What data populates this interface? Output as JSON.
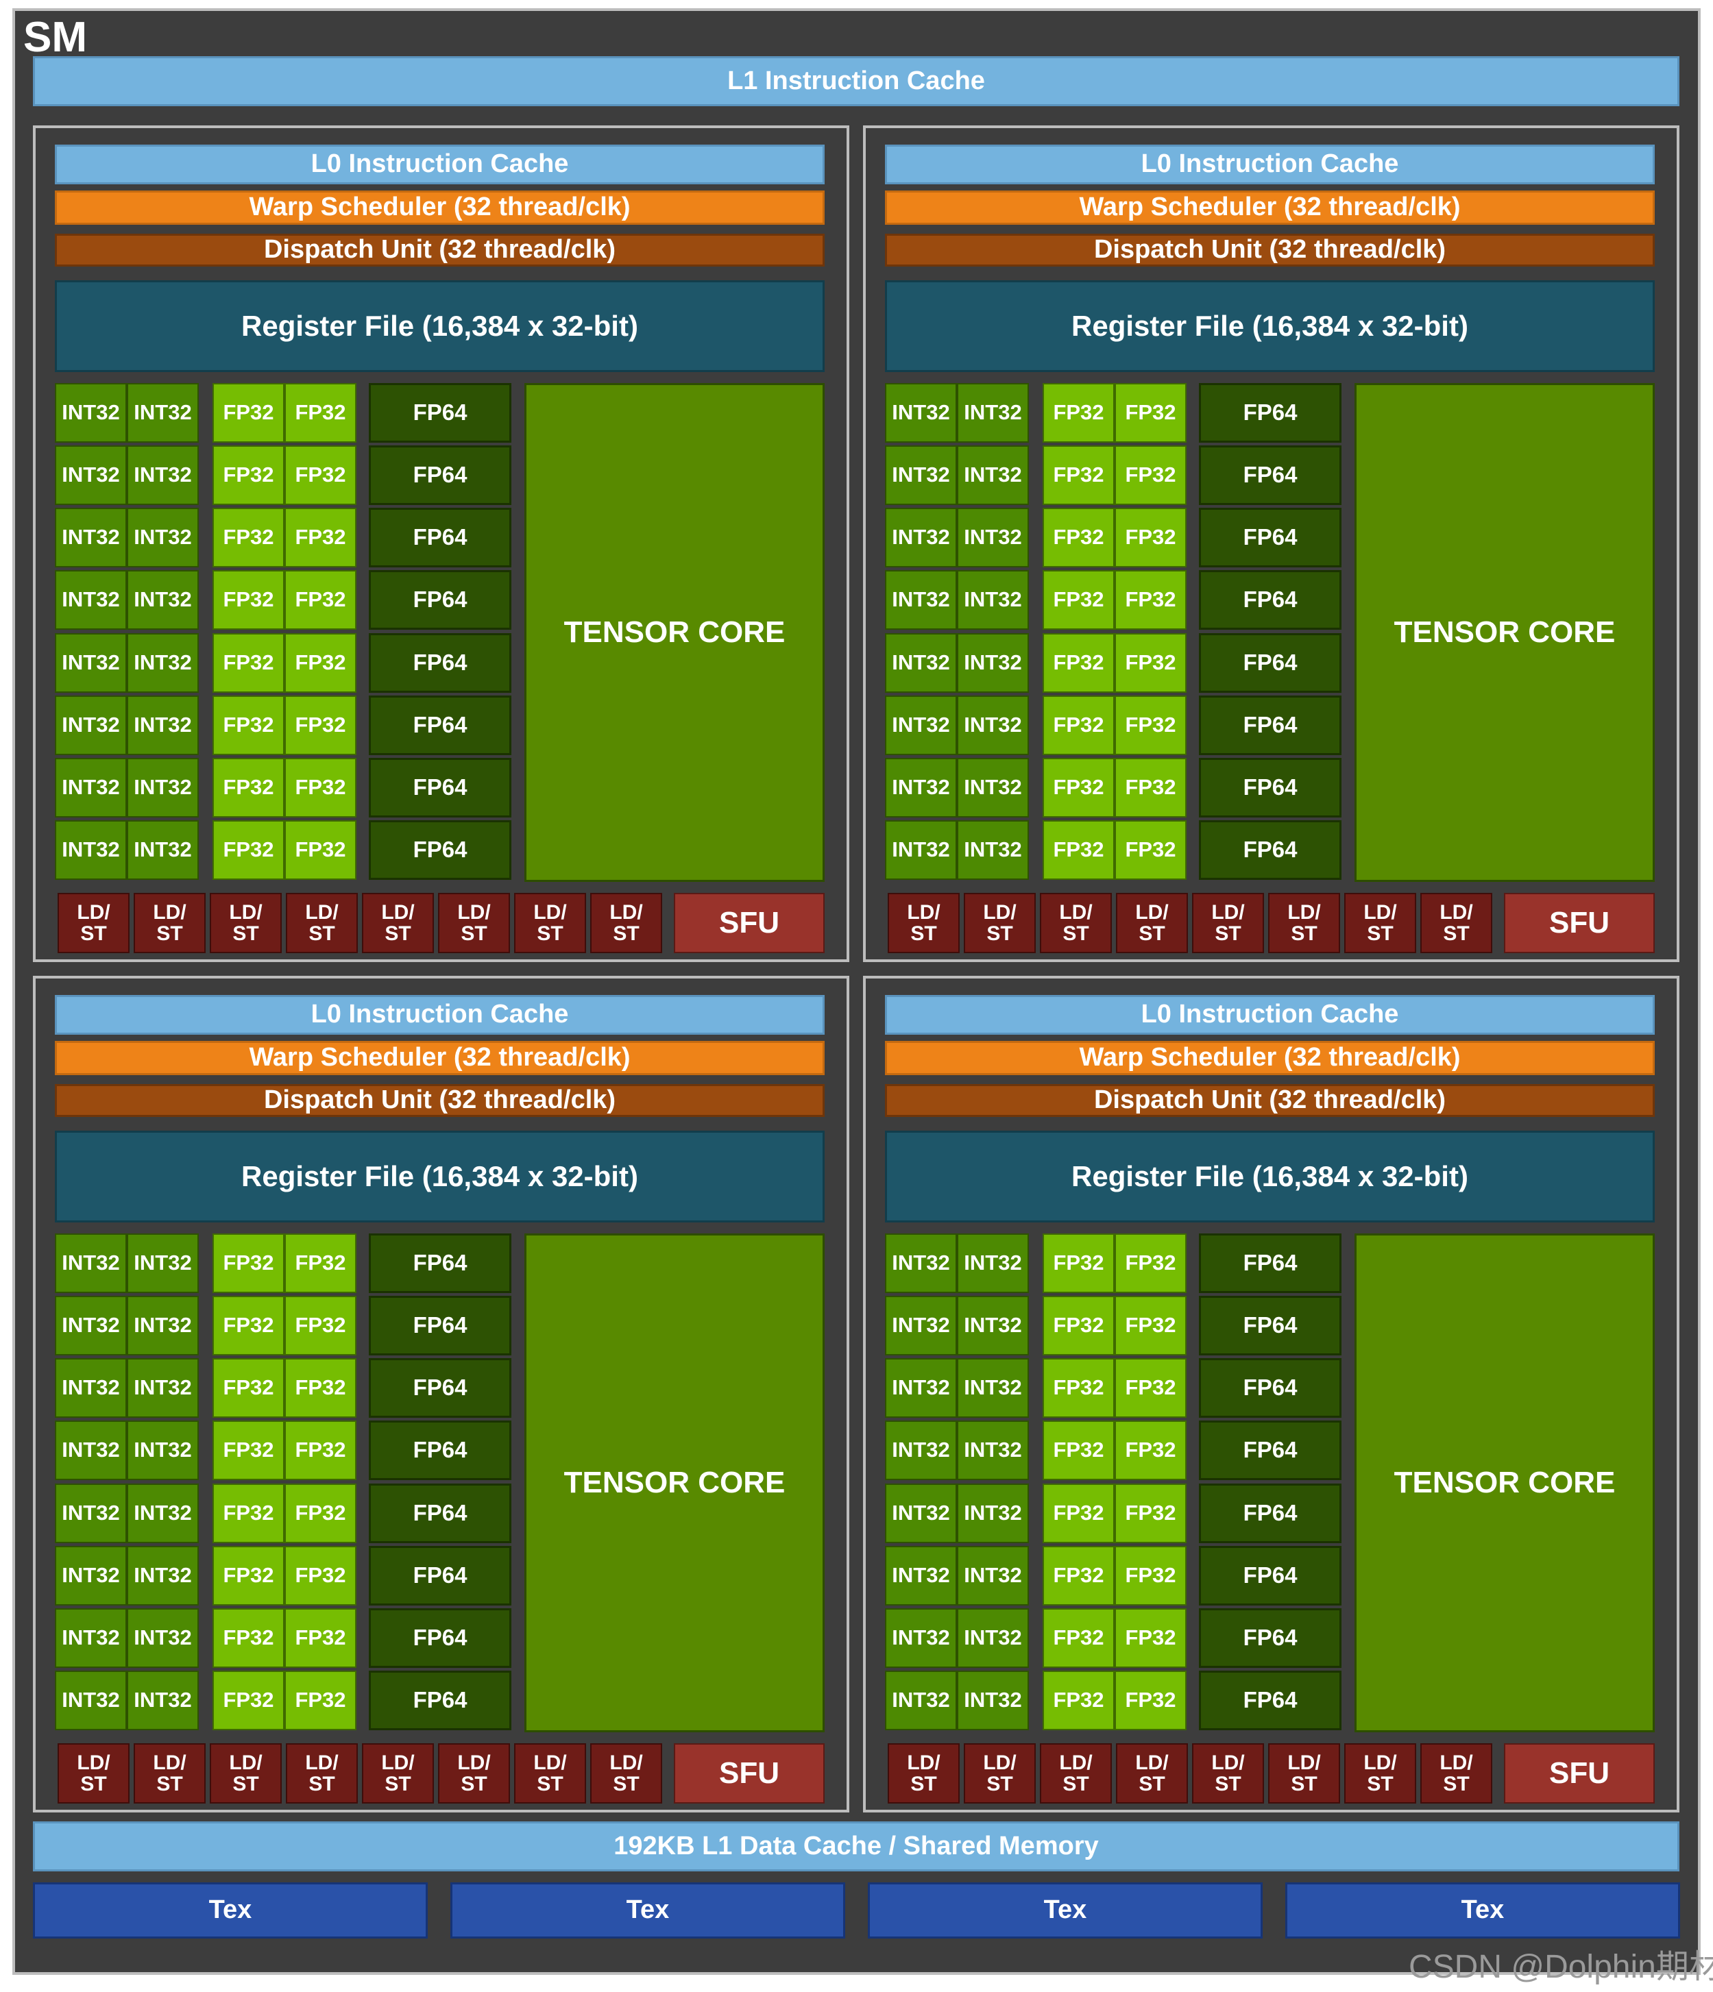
{
  "sm_label": "SM",
  "l1_instruction_cache": "L1 Instruction Cache",
  "partition": {
    "l0_cache": "L0 Instruction Cache",
    "warp_scheduler": "Warp Scheduler (32 thread/clk)",
    "dispatch_unit": "Dispatch Unit (32 thread/clk)",
    "register_file": "Register File (16,384 x 32-bit)",
    "int32": "INT32",
    "fp32": "FP32",
    "fp64": "FP64",
    "tensor_core": "TENSOR CORE",
    "ldst_line1": "LD/",
    "ldst_line2": "ST",
    "sfu": "SFU"
  },
  "l1_data_cache": "192KB L1 Data Cache / Shared Memory",
  "tex_units": [
    "Tex",
    "Tex",
    "Tex",
    "Tex"
  ],
  "watermark": "CSDN @Dolphin期材",
  "colors": {
    "background": "#3d3d3d",
    "cache_blue": "#74b3de",
    "warp_orange": "#ee8318",
    "dispatch_brown": "#9b4b0f",
    "register_teal": "#1e5669",
    "int32_green": "#4d8a02",
    "fp32_green": "#76bd02",
    "fp64_green": "#2d5203",
    "tensor_green": "#588a00",
    "ldst_red": "#6e1c17",
    "sfu_red": "#99332b",
    "tex_blue": "#2a52a9"
  }
}
